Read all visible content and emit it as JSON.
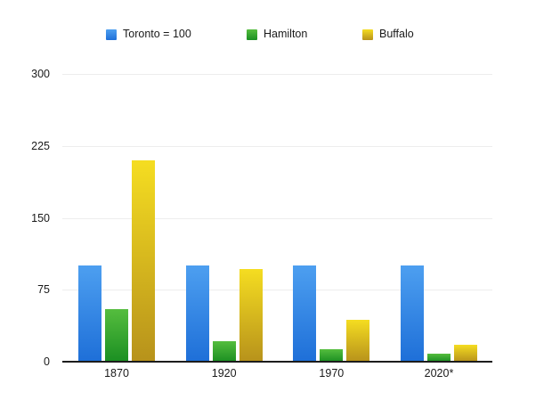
{
  "chart_data": {
    "type": "bar",
    "categories": [
      "1870",
      "1920",
      "1970",
      "2020*"
    ],
    "series": [
      {
        "name": "Toronto = 100",
        "key": "toronto",
        "color_top": "#4d9ff0",
        "color_bottom": "#1e6fd8",
        "values": [
          100,
          100,
          100,
          100
        ]
      },
      {
        "name": "Hamilton",
        "key": "hamilton",
        "color_top": "#55bd3e",
        "color_bottom": "#1b8f22",
        "values": [
          55,
          21,
          13,
          8
        ]
      },
      {
        "name": "Buffalo",
        "key": "buffalo",
        "color_top": "#f5dd21",
        "color_bottom": "#b7921b",
        "values": [
          210,
          97,
          44,
          18
        ]
      }
    ],
    "title": "",
    "xlabel": "",
    "ylabel": "",
    "ylim": [
      0,
      300
    ],
    "yticks": [
      0,
      75,
      150,
      225,
      300
    ],
    "grid": true,
    "legend_position": "top",
    "axis_color": "#1c1c1c",
    "gridline_color": "#ededed",
    "label_color": "#1a1a1a"
  }
}
